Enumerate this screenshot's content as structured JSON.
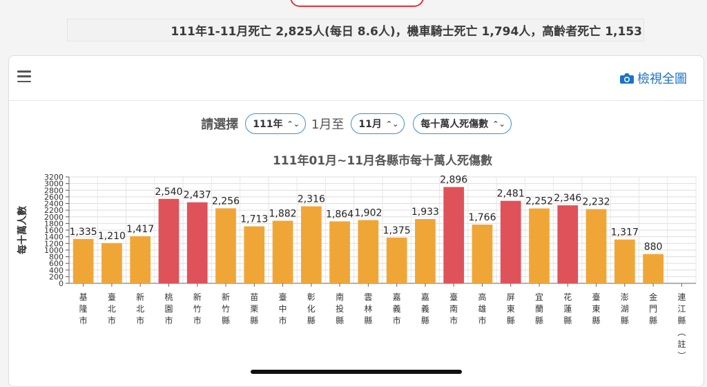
{
  "banner": {
    "text": "111年1-11月死亡 2,825人(每日 8.6人)，機車騎士死亡 1,794人，高齡者死亡 1,153"
  },
  "header": {
    "view_all_label": "檢視全圖"
  },
  "controls": {
    "label": "請選擇",
    "year_value": "111年",
    "from_text": "1月至",
    "month_value": "11月",
    "metric_value": "每十萬人死傷數"
  },
  "colors": {
    "orange": "#f0a637",
    "red": "#e0525a",
    "accent": "#1a73c9"
  },
  "chart_data": {
    "type": "bar",
    "title": "111年01月~11月各縣市每十萬人死傷數",
    "ylabel": "每十萬人數",
    "xlabel": "",
    "ylim": [
      0,
      3200
    ],
    "yticks": [
      0,
      200,
      400,
      600,
      800,
      1000,
      1200,
      1400,
      1600,
      1800,
      2000,
      2200,
      2400,
      2600,
      2800,
      3000,
      3200
    ],
    "grid": true,
    "categories": [
      "基隆市",
      "臺北市",
      "新北市",
      "桃園市",
      "新竹市",
      "新竹縣",
      "苗栗縣",
      "臺中市",
      "彰化縣",
      "南投縣",
      "雲林縣",
      "嘉義市",
      "嘉義縣",
      "臺南市",
      "高雄市",
      "屏東縣",
      "宜蘭縣",
      "花蓮縣",
      "臺東縣",
      "澎湖縣",
      "金門縣",
      "連江縣（註）"
    ],
    "values": [
      1335,
      1210,
      1417,
      2540,
      2437,
      2256,
      1713,
      1882,
      2316,
      1864,
      1902,
      1375,
      1933,
      2896,
      1766,
      2481,
      2252,
      2346,
      2232,
      1317,
      880,
      null
    ],
    "value_labels": [
      "1,335",
      "1,210",
      "1,417",
      "2,540",
      "2,437",
      "2,256",
      "1,713",
      "1,882",
      "2,316",
      "1,864",
      "1,902",
      "1,375",
      "1,933",
      "2,896",
      "1,766",
      "2,481",
      "2,252",
      "2,346",
      "2,232",
      "1,317",
      "880",
      ""
    ],
    "bar_colors": [
      "orange",
      "orange",
      "orange",
      "red",
      "red",
      "orange",
      "orange",
      "orange",
      "orange",
      "orange",
      "orange",
      "orange",
      "orange",
      "red",
      "orange",
      "red",
      "orange",
      "red",
      "orange",
      "orange",
      "orange",
      "orange"
    ]
  }
}
